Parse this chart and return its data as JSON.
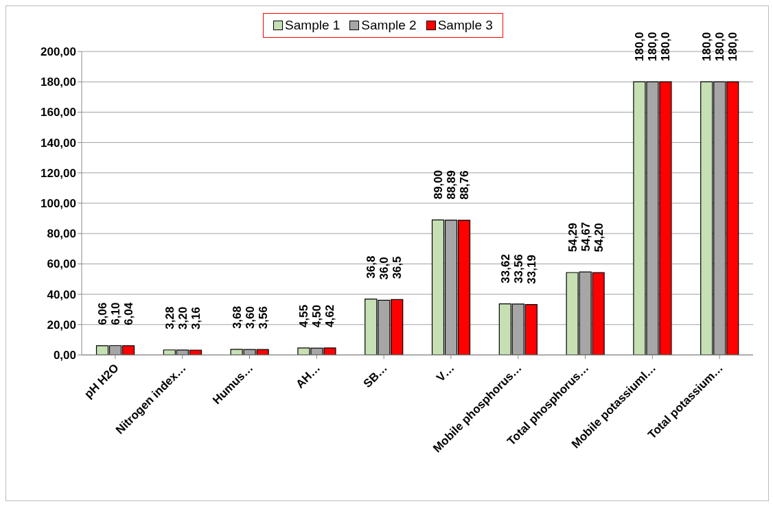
{
  "chart_data": {
    "type": "bar",
    "categories": [
      "pH H2O",
      "Nitrogen index…",
      "Humus…",
      "AH…",
      "SB…",
      "V…",
      "Mobile phosphorus…",
      "Total phosphorus…",
      "Mobile  potassiuml…",
      "Total potassium…"
    ],
    "series": [
      {
        "name": "Sample 1",
        "color": "#c6e0b4",
        "values": [
          6.06,
          3.28,
          3.68,
          4.55,
          36.8,
          89.0,
          33.62,
          54.29,
          180.0,
          180.0
        ],
        "value_labels": [
          "6,06",
          "3,28",
          "3,68",
          "4,55",
          "36,8",
          "89,00",
          "33,62",
          "54,29",
          "180,0",
          "180,0"
        ]
      },
      {
        "name": "Sample 2",
        "color": "#a6a6a6",
        "values": [
          6.1,
          3.2,
          3.6,
          4.5,
          36.0,
          88.89,
          33.56,
          54.67,
          180.0,
          180.0
        ],
        "value_labels": [
          "6,10",
          "3,20",
          "3,60",
          "4,50",
          "36,0",
          "88,89",
          "33,56",
          "54,67",
          "180,0",
          "180,0"
        ]
      },
      {
        "name": "Sample 3",
        "color": "#ff0000",
        "values": [
          6.04,
          3.16,
          3.56,
          4.62,
          36.5,
          88.76,
          33.19,
          54.2,
          180.0,
          180.0
        ],
        "value_labels": [
          "6,04",
          "3,16",
          "3,56",
          "4,62",
          "36,5",
          "88,76",
          "33,19",
          "54,20",
          "180,0",
          "180,0"
        ]
      }
    ],
    "ylim": [
      0,
      200
    ],
    "yticks": [
      {
        "value": 0,
        "label": "0,00"
      },
      {
        "value": 20,
        "label": "20,00"
      },
      {
        "value": 40,
        "label": "40,00"
      },
      {
        "value": 60,
        "label": "60,00"
      },
      {
        "value": 80,
        "label": "80,00"
      },
      {
        "value": 100,
        "label": "100,00"
      },
      {
        "value": 120,
        "label": "120,00"
      },
      {
        "value": 140,
        "label": "140,00"
      },
      {
        "value": 160,
        "label": "160,00"
      },
      {
        "value": 180,
        "label": "180,00"
      },
      {
        "value": 200,
        "label": "200,00"
      }
    ],
    "grid": "y",
    "legend": "top"
  }
}
